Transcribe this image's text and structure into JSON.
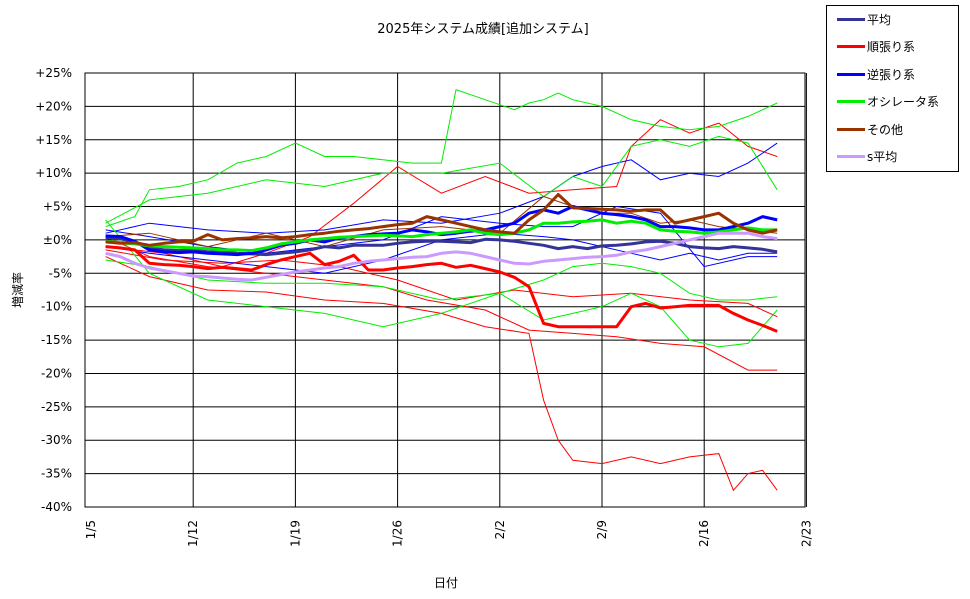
{
  "chart_data": {
    "type": "line",
    "title": "2025年システム成績[追加システム]",
    "xlabel": "日付",
    "ylabel": "増減率",
    "x_ticks": [
      "1/5",
      "1/12",
      "1/19",
      "1/26",
      "2/2",
      "2/9",
      "2/16",
      "2/23"
    ],
    "y_ticks": [
      "+25%",
      "+20%",
      "+15%",
      "+10%",
      "+5%",
      "±0%",
      "-5%",
      "-10%",
      "-15%",
      "-20%",
      "-25%",
      "-30%",
      "-35%",
      "-40%"
    ],
    "xlim": [
      0,
      49
    ],
    "ylim": [
      -40,
      25
    ],
    "grid": true,
    "legend_position": "top-right-outside",
    "series": [
      {
        "name": "平均",
        "color": "#333399",
        "width": 3,
        "x": [
          1,
          2,
          3,
          4,
          5,
          6,
          7,
          8,
          9,
          10,
          11,
          12,
          13,
          14,
          15,
          16,
          17,
          18,
          19,
          20,
          21,
          22,
          23,
          24,
          25,
          26,
          27,
          28,
          29,
          30,
          31,
          32,
          33,
          34,
          35,
          36,
          37,
          38,
          39,
          40,
          41,
          42,
          43,
          44,
          45,
          46,
          47
        ],
        "y": [
          0.3,
          0.2,
          -0.3,
          -1.2,
          -1.5,
          -1.6,
          -1.5,
          -1.8,
          -1.8,
          -2.0,
          -2.1,
          -2.2,
          -2.0,
          -1.8,
          -1.5,
          -1.0,
          -1.2,
          -0.8,
          -0.8,
          -0.8,
          -0.5,
          -0.3,
          -0.2,
          -0.2,
          -0.3,
          -0.4,
          0.1,
          0.0,
          -0.2,
          -0.5,
          -0.8,
          -1.3,
          -1.0,
          -1.3,
          -0.9,
          -0.8,
          -0.6,
          -0.3,
          -0.2,
          -0.5,
          -1.0,
          -1.2,
          -1.3,
          -1.0,
          -1.2,
          -1.4,
          -1.8
        ]
      },
      {
        "name": "順張り系",
        "color": "#ff0000",
        "width": 3,
        "x": [
          1,
          2,
          3,
          4,
          5,
          6,
          7,
          8,
          9,
          10,
          11,
          12,
          13,
          14,
          15,
          16,
          17,
          18,
          19,
          20,
          21,
          22,
          23,
          24,
          25,
          26,
          27,
          28,
          29,
          30,
          31,
          32,
          33,
          34,
          35,
          36,
          37,
          38,
          39,
          40,
          41,
          42,
          43,
          44,
          45,
          46,
          47
        ],
        "y": [
          -1.0,
          -1.2,
          -1.5,
          -3.5,
          -3.7,
          -3.8,
          -4.0,
          -4.3,
          -4.1,
          -4.3,
          -4.5,
          -3.7,
          -3.0,
          -2.5,
          -2.0,
          -3.7,
          -3.2,
          -2.3,
          -4.5,
          -4.5,
          -4.2,
          -4.0,
          -3.7,
          -3.5,
          -4.1,
          -3.8,
          -4.3,
          -4.8,
          -5.6,
          -7.0,
          -12.5,
          -13.0,
          -13.0,
          -13.0,
          -13.0,
          -13.0,
          -10.0,
          -9.5,
          -10.2,
          -10.0,
          -9.8,
          -9.8,
          -9.8,
          -11.0,
          -12.0,
          -12.8,
          -13.7
        ]
      },
      {
        "name": "逆張り系",
        "color": "#0000ff",
        "width": 3,
        "x": [
          1,
          2,
          3,
          4,
          5,
          6,
          7,
          8,
          9,
          10,
          11,
          12,
          13,
          14,
          15,
          16,
          17,
          18,
          19,
          20,
          21,
          22,
          23,
          24,
          25,
          26,
          27,
          28,
          29,
          30,
          31,
          32,
          33,
          34,
          35,
          36,
          37,
          38,
          39,
          40,
          41,
          42,
          43,
          44,
          45,
          46,
          47
        ],
        "y": [
          0.6,
          0.5,
          -0.2,
          -1.5,
          -1.8,
          -1.9,
          -1.8,
          -2.0,
          -2.1,
          -2.2,
          -2.0,
          -1.5,
          -0.8,
          -0.5,
          0.0,
          -0.3,
          0.3,
          0.5,
          0.8,
          0.9,
          1.0,
          1.5,
          1.2,
          0.8,
          1.0,
          1.3,
          1.5,
          2.0,
          2.5,
          4.0,
          4.5,
          4.0,
          5.0,
          4.5,
          4.0,
          3.8,
          3.5,
          3.0,
          2.0,
          2.0,
          1.8,
          1.5,
          1.5,
          2.0,
          2.5,
          3.5,
          3.0
        ]
      },
      {
        "name": "オシレータ系",
        "color": "#00ee00",
        "width": 3,
        "x": [
          1,
          2,
          3,
          4,
          5,
          6,
          7,
          8,
          9,
          10,
          11,
          12,
          13,
          14,
          15,
          16,
          17,
          18,
          19,
          20,
          21,
          22,
          23,
          24,
          25,
          26,
          27,
          28,
          29,
          30,
          31,
          32,
          33,
          34,
          35,
          36,
          37,
          38,
          39,
          40,
          41,
          42,
          43,
          44,
          45,
          46,
          47
        ],
        "y": [
          -0.2,
          -0.4,
          -0.6,
          -0.9,
          -1.0,
          -1.1,
          -1.2,
          -1.3,
          -1.5,
          -1.5,
          -1.6,
          -1.2,
          -0.6,
          -0.3,
          0.0,
          0.2,
          0.4,
          0.5,
          0.6,
          0.7,
          0.6,
          0.5,
          0.8,
          1.0,
          1.2,
          1.5,
          1.0,
          0.8,
          1.0,
          1.5,
          2.5,
          2.5,
          2.7,
          2.8,
          3.0,
          2.5,
          2.8,
          2.5,
          1.5,
          1.3,
          1.2,
          1.0,
          1.2,
          1.5,
          1.8,
          1.5,
          1.5
        ]
      },
      {
        "name": "その他",
        "color": "#993300",
        "width": 3,
        "x": [
          1,
          2,
          3,
          4,
          5,
          6,
          7,
          8,
          9,
          10,
          11,
          12,
          13,
          14,
          15,
          16,
          17,
          18,
          19,
          20,
          21,
          22,
          23,
          24,
          25,
          26,
          27,
          28,
          29,
          30,
          31,
          32,
          33,
          34,
          35,
          36,
          37,
          38,
          39,
          40,
          41,
          42,
          43,
          44,
          45,
          46,
          47
        ],
        "y": [
          -0.3,
          -0.5,
          -0.4,
          -0.8,
          -0.5,
          -0.3,
          -0.2,
          0.8,
          0.0,
          0.2,
          0.3,
          0.5,
          0.3,
          0.5,
          0.8,
          1.0,
          1.3,
          1.5,
          1.7,
          2.0,
          2.3,
          2.5,
          3.5,
          3.0,
          2.5,
          2.0,
          1.5,
          1.2,
          1.0,
          3.0,
          4.5,
          6.8,
          4.8,
          4.7,
          4.6,
          4.5,
          4.3,
          4.5,
          4.5,
          2.5,
          3.0,
          3.5,
          4.0,
          2.5,
          1.5,
          1.0,
          1.5
        ]
      },
      {
        "name": "s平均",
        "color": "#cc99ff",
        "width": 3,
        "x": [
          1,
          2,
          3,
          4,
          5,
          6,
          7,
          8,
          9,
          10,
          11,
          12,
          13,
          14,
          15,
          16,
          17,
          18,
          19,
          20,
          21,
          22,
          23,
          24,
          25,
          26,
          27,
          28,
          29,
          30,
          31,
          32,
          33,
          34,
          35,
          36,
          37,
          38,
          39,
          40,
          41,
          42,
          43,
          44,
          45,
          46,
          47
        ],
        "y": [
          -2.0,
          -2.5,
          -3.5,
          -4.2,
          -4.6,
          -5.0,
          -5.4,
          -5.5,
          -5.7,
          -5.9,
          -6.0,
          -5.6,
          -5.2,
          -4.8,
          -4.5,
          -4.2,
          -4.0,
          -3.5,
          -3.2,
          -3.0,
          -2.8,
          -2.6,
          -2.5,
          -2.0,
          -1.8,
          -2.0,
          -2.5,
          -3.0,
          -3.5,
          -3.6,
          -3.2,
          -3.0,
          -2.8,
          -2.6,
          -2.5,
          -2.3,
          -1.8,
          -1.5,
          -1.0,
          -0.5,
          0.0,
          0.5,
          1.0,
          1.0,
          1.0,
          0.5,
          0.2
        ]
      }
    ],
    "thin_series": [
      {
        "color": "#ff0000",
        "x": [
          1,
          4,
          8,
          12,
          16,
          20,
          24,
          27,
          30,
          31,
          32,
          33,
          35,
          37,
          39,
          41,
          43,
          44,
          45,
          46,
          47
        ],
        "y": [
          -2.5,
          -5.5,
          -7.5,
          -7.8,
          -9.0,
          -9.5,
          -11.0,
          -13.0,
          -14.0,
          -24.0,
          -30.0,
          -33.0,
          -33.5,
          -32.5,
          -33.5,
          -32.5,
          -32.0,
          -37.5,
          -35.0,
          -34.5,
          -37.5
        ]
      },
      {
        "color": "#ff0000",
        "x": [
          1,
          5,
          9,
          12,
          15,
          18,
          21,
          24,
          27,
          30,
          33,
          36,
          37,
          39,
          41,
          43,
          45,
          47
        ],
        "y": [
          -1.0,
          -2.0,
          -4.0,
          -2.0,
          0.5,
          5.5,
          11.0,
          7.0,
          9.5,
          7.0,
          7.5,
          8.0,
          14.0,
          18.0,
          16.0,
          17.5,
          14.0,
          12.5
        ]
      },
      {
        "color": "#ff0000",
        "x": [
          1,
          4,
          8,
          12,
          16,
          20,
          23,
          27,
          30,
          33,
          36,
          39,
          42,
          45,
          47
        ],
        "y": [
          0.5,
          -2.5,
          -4.0,
          -5.0,
          -6.0,
          -7.0,
          -9.0,
          -10.5,
          -13.5,
          -14.0,
          -14.5,
          -15.5,
          -16.0,
          -19.5,
          -19.5
        ]
      },
      {
        "color": "#ff0000",
        "x": [
          1,
          5,
          9,
          13,
          17,
          21,
          25,
          29,
          33,
          37,
          41,
          45,
          47
        ],
        "y": [
          -1.5,
          -3.0,
          -3.5,
          -3.0,
          -4.0,
          -6.0,
          -9.0,
          -7.5,
          -8.5,
          -8.0,
          -9.0,
          -9.5,
          -11.5
        ]
      },
      {
        "color": "#0000ff",
        "x": [
          1,
          4,
          8,
          12,
          16,
          20,
          24,
          28,
          31,
          33,
          35,
          37,
          39,
          41,
          43,
          45,
          47
        ],
        "y": [
          1.0,
          2.5,
          1.5,
          1.0,
          1.5,
          3.0,
          2.5,
          4.0,
          6.5,
          9.5,
          11.0,
          12.0,
          9.0,
          10.0,
          9.5,
          11.5,
          14.5
        ]
      },
      {
        "color": "#0000ff",
        "x": [
          1,
          4,
          8,
          12,
          16,
          20,
          24,
          28,
          31,
          33,
          36,
          39,
          42,
          45,
          47
        ],
        "y": [
          1.5,
          0.5,
          -1.0,
          -2.0,
          -1.0,
          0.0,
          3.5,
          2.5,
          2.0,
          2.0,
          5.0,
          4.0,
          -4.0,
          -2.5,
          -2.5
        ]
      },
      {
        "color": "#0000ff",
        "x": [
          1,
          4,
          8,
          12,
          16,
          20,
          24,
          28,
          31,
          33,
          35,
          37,
          39,
          41,
          43,
          45,
          47
        ],
        "y": [
          -1.0,
          -2.0,
          -3.0,
          -4.0,
          -5.0,
          -3.0,
          0.0,
          1.0,
          0.5,
          0.0,
          -1.0,
          -2.0,
          -3.0,
          -2.0,
          -3.0,
          -2.0,
          -2.0
        ]
      },
      {
        "color": "#00ee00",
        "x": [
          1,
          3,
          4,
          6,
          8,
          10,
          12,
          14,
          16,
          18,
          20,
          22,
          24,
          25,
          27,
          29,
          30,
          31,
          32,
          33,
          35,
          37,
          39,
          41,
          43,
          45,
          47
        ],
        "y": [
          2.0,
          3.5,
          7.5,
          8.0,
          9.0,
          11.5,
          12.5,
          14.5,
          12.5,
          12.5,
          12.0,
          11.5,
          11.5,
          22.5,
          21.0,
          19.5,
          20.5,
          21.0,
          22.0,
          21.0,
          20.0,
          18.0,
          17.0,
          16.5,
          17.0,
          18.5,
          20.5
        ]
      },
      {
        "color": "#00ee00",
        "x": [
          1,
          4,
          8,
          12,
          16,
          20,
          24,
          28,
          31,
          33,
          35,
          37,
          39,
          41,
          43,
          45,
          47
        ],
        "y": [
          3.0,
          -5.0,
          -9.0,
          -10.0,
          -11.0,
          -13.0,
          -11.0,
          -8.0,
          -12.0,
          -11.0,
          -10.0,
          -8.0,
          -10.0,
          -15.0,
          -16.0,
          -15.5,
          -10.5
        ]
      },
      {
        "color": "#00ee00",
        "x": [
          1,
          4,
          8,
          12,
          16,
          20,
          24,
          28,
          31,
          33,
          35,
          37,
          39,
          41,
          43,
          45,
          47
        ],
        "y": [
          -3.0,
          -4.0,
          -6.0,
          -6.5,
          -6.5,
          -7.0,
          -9.0,
          -8.0,
          -6.0,
          -4.0,
          -3.5,
          -4.0,
          -5.0,
          -8.0,
          -9.0,
          -9.0,
          -8.5
        ]
      },
      {
        "color": "#00ee00",
        "x": [
          1,
          4,
          8,
          12,
          16,
          20,
          24,
          28,
          31,
          33,
          35,
          37,
          39,
          41,
          43,
          45,
          47
        ],
        "y": [
          2.5,
          6.0,
          7.0,
          9.0,
          8.0,
          10.0,
          10.0,
          11.5,
          6.5,
          9.5,
          8.0,
          14.0,
          15.0,
          14.0,
          15.5,
          14.5,
          7.5
        ]
      },
      {
        "color": "#993300",
        "x": [
          1,
          4,
          8,
          12,
          16,
          20,
          24,
          28,
          31,
          33,
          35,
          37,
          39,
          41,
          43,
          45,
          47
        ],
        "y": [
          0.5,
          1.0,
          -1.0,
          1.0,
          -1.0,
          1.5,
          2.0,
          1.0,
          6.5,
          5.0,
          4.0,
          4.0,
          2.5,
          3.0,
          2.0,
          1.5,
          1.0
        ]
      }
    ]
  }
}
